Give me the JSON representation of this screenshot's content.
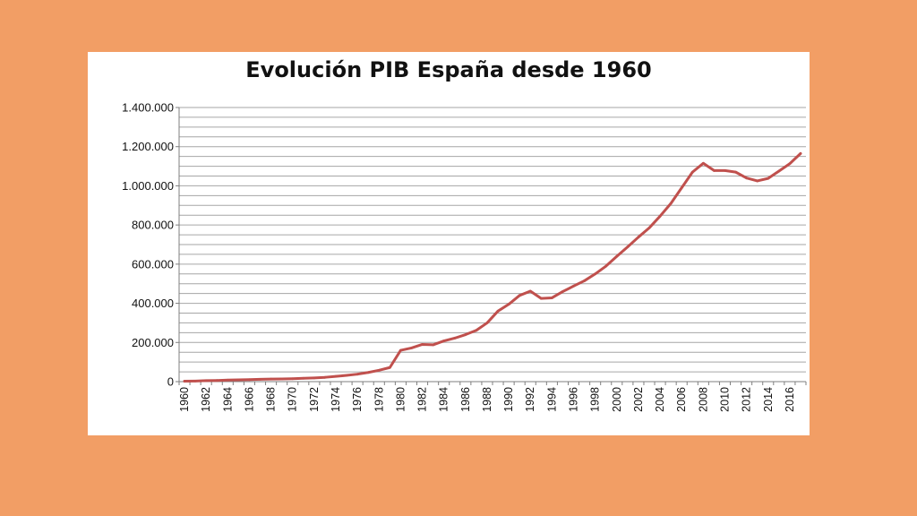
{
  "chart_data": {
    "type": "line",
    "title": "Evolución PIB España desde 1960",
    "xlabel": "",
    "ylabel": "",
    "ylim": [
      0,
      1400000
    ],
    "y_ticks": [
      0,
      200000,
      400000,
      600000,
      800000,
      1000000,
      1200000,
      1400000
    ],
    "y_tick_labels": [
      "0",
      "200.000",
      "400.000",
      "600.000",
      "800.000",
      "1.000.000",
      "1.200.000",
      "1.400.000"
    ],
    "minor_grid_step": 50000,
    "grid": true,
    "legend": "none",
    "line_color": "#c0504d",
    "x_tick_labels": [
      "1960",
      "1962",
      "1964",
      "1966",
      "1968",
      "1970",
      "1972",
      "1974",
      "1976",
      "1978",
      "1980",
      "1982",
      "1984",
      "1986",
      "1988",
      "1990",
      "1992",
      "1994",
      "1996",
      "1998",
      "2000",
      "2002",
      "2004",
      "2006",
      "2008",
      "2010",
      "2012",
      "2014",
      "2016"
    ],
    "x": [
      1960,
      1961,
      1962,
      1963,
      1964,
      1965,
      1966,
      1967,
      1968,
      1969,
      1970,
      1971,
      1972,
      1973,
      1974,
      1975,
      1976,
      1977,
      1978,
      1979,
      1980,
      1981,
      1982,
      1983,
      1984,
      1985,
      1986,
      1987,
      1988,
      1989,
      1990,
      1991,
      1992,
      1993,
      1994,
      1995,
      1996,
      1997,
      1998,
      1999,
      2000,
      2001,
      2002,
      2003,
      2004,
      2005,
      2006,
      2007,
      2008,
      2009,
      2010,
      2011,
      2012,
      2013,
      2014,
      2015,
      2016,
      2017
    ],
    "series": [
      {
        "values": [
          2000,
          3000,
          5000,
          6000,
          8000,
          9000,
          10000,
          12000,
          13000,
          14000,
          15000,
          17000,
          19000,
          22000,
          27000,
          32000,
          38000,
          47000,
          58000,
          72000,
          160000,
          172000,
          190000,
          188000,
          208000,
          222000,
          240000,
          262000,
          300000,
          360000,
          395000,
          440000,
          462000,
          425000,
          428000,
          460000,
          488000,
          515000,
          550000,
          590000,
          640000,
          688000,
          738000,
          785000,
          845000,
          910000,
          990000,
          1070000,
          1115000,
          1078000,
          1078000,
          1070000,
          1040000,
          1025000,
          1038000,
          1075000,
          1113000,
          1165000
        ]
      }
    ]
  }
}
